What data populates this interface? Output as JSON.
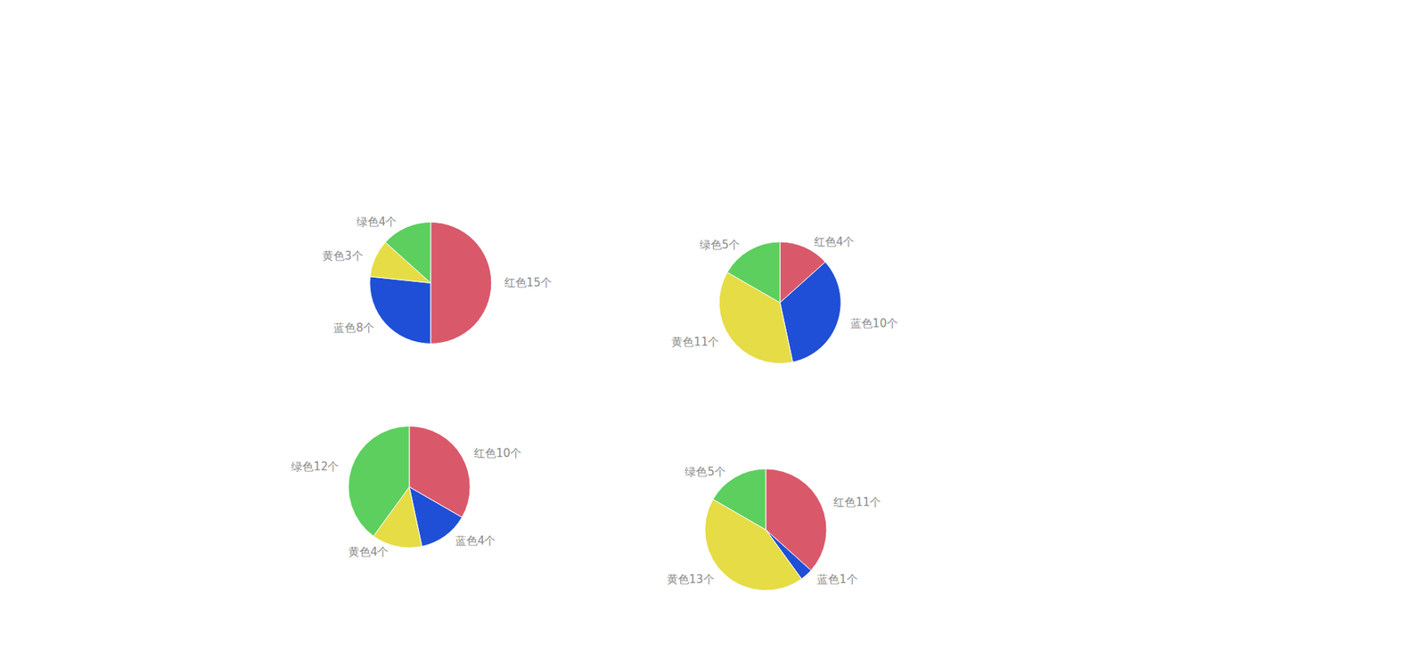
{
  "chart_data": [
    {
      "type": "pie",
      "data_labels": true,
      "values": [
        15,
        8,
        3,
        4
      ],
      "value_labels": [
        "红色15个",
        "蓝色8个",
        "黄色3个",
        "绿色4个"
      ],
      "colors": [
        "#d9596a",
        "#1f4fd6",
        "#e6dc45",
        "#5ccf5e"
      ]
    },
    {
      "type": "pie",
      "data_labels": true,
      "values": [
        4,
        10,
        11,
        5
      ],
      "value_labels": [
        "红色4个",
        "蓝色10个",
        "黄色11个",
        "绿色5个"
      ],
      "colors": [
        "#d9596a",
        "#1f4fd6",
        "#e6dc45",
        "#5ccf5e"
      ]
    },
    {
      "type": "pie",
      "data_labels": true,
      "values": [
        10,
        4,
        4,
        12
      ],
      "value_labels": [
        "红色10个",
        "蓝色4个",
        "黄色4个",
        "绿色12个"
      ],
      "colors": [
        "#d9596a",
        "#1f4fd6",
        "#e6dc45",
        "#5ccf5e"
      ]
    },
    {
      "type": "pie",
      "data_labels": true,
      "values": [
        11,
        1,
        13,
        5
      ],
      "value_labels": [
        "红色11个",
        "蓝色1个",
        "黄色13个",
        "绿色5个"
      ],
      "colors": [
        "#d9596a",
        "#1f4fd6",
        "#e6dc45",
        "#5ccf5e"
      ]
    }
  ]
}
